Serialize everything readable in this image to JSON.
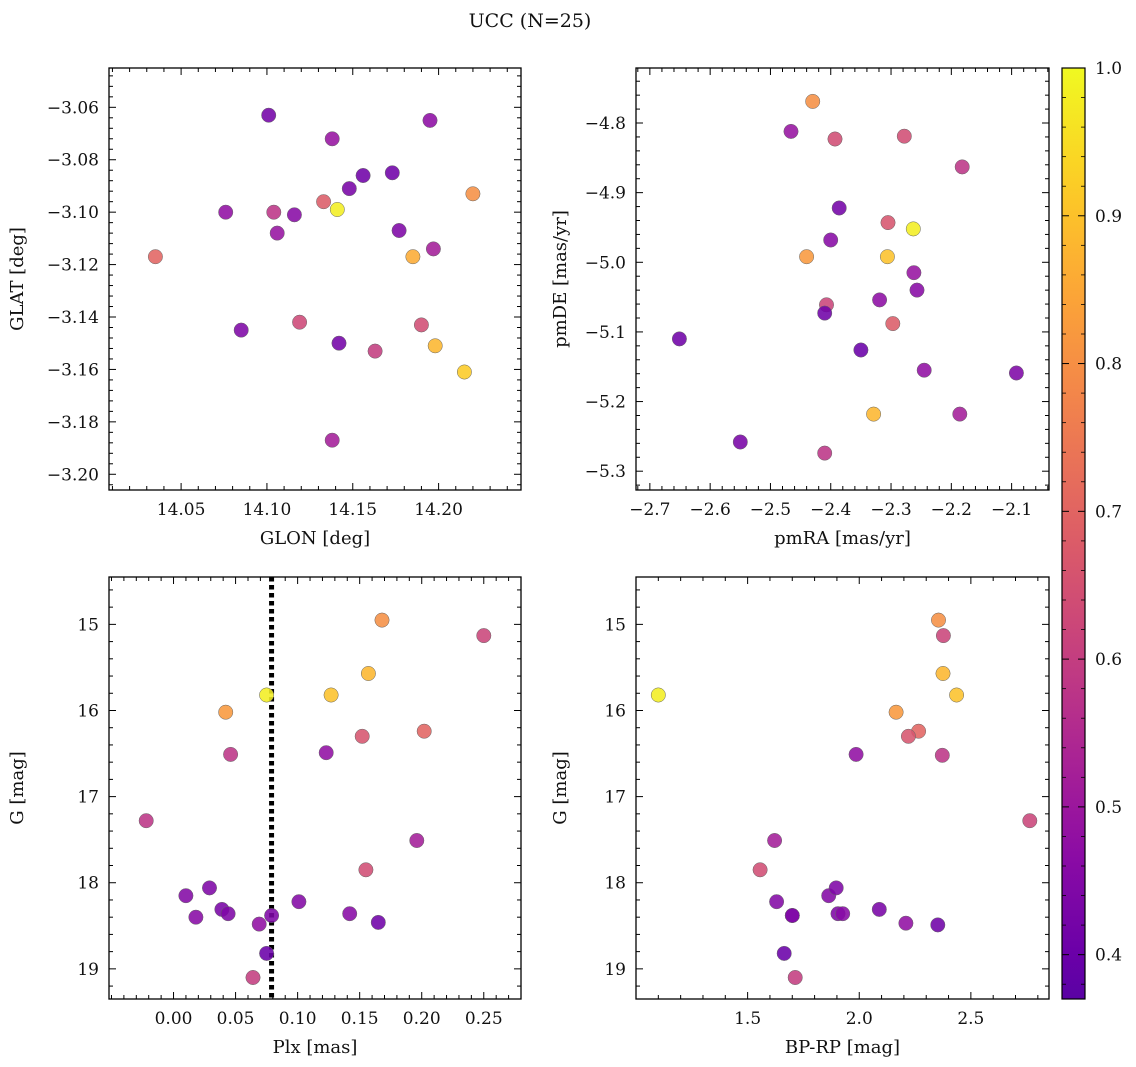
{
  "figure": {
    "title": "UCC (N=25)"
  },
  "colorbar": {
    "colormap": "plasma",
    "min": 0.37,
    "max": 1.0,
    "ticks": [
      "0.4",
      "0.5",
      "0.6",
      "0.7",
      "0.8",
      "0.9",
      "1.0"
    ],
    "tick_values": [
      0.4,
      0.5,
      0.6,
      0.7,
      0.8,
      0.9,
      1.0
    ]
  },
  "chart_data": [
    {
      "type": "scatter",
      "id": "glon-glat",
      "xlabel": "GLON [deg]",
      "ylabel": "GLAT [deg]",
      "xlim": [
        14.008,
        14.248
      ],
      "ylim": [
        -3.206,
        -3.045
      ],
      "y_inverted": false,
      "xticks": [
        14.05,
        14.1,
        14.15,
        14.2
      ],
      "xticklabels": [
        "14.05",
        "14.10",
        "14.15",
        "14.20"
      ],
      "yticks": [
        -3.06,
        -3.08,
        -3.1,
        -3.12,
        -3.14,
        -3.16,
        -3.18,
        -3.2
      ],
      "yticklabels": [
        "−3.06",
        "−3.08",
        "−3.10",
        "−3.12",
        "−3.14",
        "−3.16",
        "−3.18",
        "−3.20"
      ],
      "x": [
        14.101,
        14.195,
        14.138,
        14.173,
        14.156,
        14.148,
        14.22,
        14.076,
        14.104,
        14.116,
        14.133,
        14.141,
        14.106,
        14.035,
        14.177,
        14.197,
        14.185,
        14.119,
        14.19,
        14.085,
        14.142,
        14.163,
        14.198,
        14.215,
        14.138
      ],
      "y": [
        -3.063,
        -3.065,
        -3.072,
        -3.085,
        -3.086,
        -3.091,
        -3.093,
        -3.1,
        -3.1,
        -3.101,
        -3.096,
        -3.099,
        -3.108,
        -3.117,
        -3.107,
        -3.114,
        -3.117,
        -3.142,
        -3.143,
        -3.145,
        -3.15,
        -3.153,
        -3.151,
        -3.161,
        -3.187
      ],
      "c": [
        0.42,
        0.47,
        0.49,
        0.41,
        0.41,
        0.43,
        0.8,
        0.48,
        0.58,
        0.46,
        0.68,
        0.98,
        0.49,
        0.7,
        0.44,
        0.52,
        0.86,
        0.63,
        0.64,
        0.44,
        0.42,
        0.6,
        0.88,
        0.92,
        0.52
      ]
    },
    {
      "type": "scatter",
      "id": "pmra-pmde",
      "xlabel": "pmRA [mas/yr]",
      "ylabel": "pmDE [mas/yr]",
      "xlim": [
        -2.723,
        -2.038
      ],
      "ylim": [
        -5.327,
        -4.721
      ],
      "y_inverted": false,
      "xticks": [
        -2.7,
        -2.6,
        -2.5,
        -2.4,
        -2.3,
        -2.2,
        -2.1
      ],
      "xticklabels": [
        "−2.7",
        "−2.6",
        "−2.5",
        "−2.4",
        "−2.3",
        "−2.2",
        "−2.1"
      ],
      "yticks": [
        -4.8,
        -4.9,
        -5.0,
        -5.1,
        -5.2,
        -5.3
      ],
      "yticklabels": [
        "−4.8",
        "−4.9",
        "−5.0",
        "−5.1",
        "−5.2",
        "−5.3"
      ],
      "x": [
        -2.43,
        -2.466,
        -2.393,
        -2.278,
        -2.182,
        -2.386,
        -2.305,
        -2.263,
        -2.4,
        -2.44,
        -2.306,
        -2.262,
        -2.257,
        -2.407,
        -2.41,
        -2.319,
        -2.297,
        -2.651,
        -2.35,
        -2.245,
        -2.092,
        -2.329,
        -2.186,
        -2.55,
        -2.41
      ],
      "y": [
        -4.769,
        -4.812,
        -4.823,
        -4.819,
        -4.863,
        -4.922,
        -4.943,
        -4.952,
        -4.968,
        -4.992,
        -4.992,
        -5.015,
        -5.04,
        -5.061,
        -5.073,
        -5.054,
        -5.088,
        -5.11,
        -5.126,
        -5.155,
        -5.159,
        -5.218,
        -5.218,
        -5.258,
        -5.274
      ],
      "c": [
        0.8,
        0.49,
        0.64,
        0.64,
        0.58,
        0.42,
        0.66,
        0.98,
        0.46,
        0.82,
        0.9,
        0.49,
        0.46,
        0.62,
        0.41,
        0.47,
        0.68,
        0.41,
        0.4,
        0.48,
        0.44,
        0.88,
        0.52,
        0.43,
        0.58
      ]
    },
    {
      "type": "scatter",
      "id": "plx-g",
      "xlabel": "Plx [mas]",
      "ylabel": "G [mag]",
      "xlim": [
        -0.052,
        0.28
      ],
      "ylim": [
        19.35,
        14.45
      ],
      "y_inverted": true,
      "xticks": [
        0.0,
        0.05,
        0.1,
        0.15,
        0.2,
        0.25
      ],
      "xticklabels": [
        "0.00",
        "0.05",
        "0.10",
        "0.15",
        "0.20",
        "0.25"
      ],
      "yticks": [
        15,
        16,
        17,
        18,
        19
      ],
      "yticklabels": [
        "15",
        "16",
        "17",
        "18",
        "19"
      ],
      "vline": 0.079,
      "x": [
        0.168,
        0.25,
        0.157,
        0.075,
        0.127,
        0.042,
        0.202,
        0.152,
        0.046,
        0.123,
        -0.022,
        0.196,
        0.155,
        0.01,
        0.029,
        0.101,
        0.018,
        0.039,
        0.044,
        0.142,
        0.079,
        0.069,
        0.165,
        0.075,
        0.064
      ],
      "y": [
        14.95,
        15.13,
        15.57,
        15.82,
        15.82,
        16.02,
        16.24,
        16.3,
        16.51,
        16.49,
        17.28,
        17.51,
        17.85,
        18.15,
        18.06,
        18.22,
        18.4,
        18.31,
        18.36,
        18.36,
        18.38,
        18.48,
        18.46,
        18.82,
        19.1
      ],
      "c": [
        0.8,
        0.62,
        0.88,
        0.98,
        0.9,
        0.82,
        0.7,
        0.66,
        0.58,
        0.48,
        0.58,
        0.52,
        0.64,
        0.45,
        0.44,
        0.45,
        0.46,
        0.43,
        0.44,
        0.46,
        0.44,
        0.48,
        0.41,
        0.4,
        0.6
      ]
    },
    {
      "type": "scatter",
      "id": "bprp-g",
      "xlabel": "BP-RP [mag]",
      "ylabel": "G [mag]",
      "xlim": [
        1.0,
        2.85
      ],
      "ylim": [
        19.35,
        14.45
      ],
      "y_inverted": true,
      "xticks": [
        1.5,
        2.0,
        2.5
      ],
      "xticklabels": [
        "1.5",
        "2.0",
        "2.5"
      ],
      "yticks": [
        15,
        16,
        17,
        18,
        19
      ],
      "yticklabels": [
        "15",
        "16",
        "17",
        "18",
        "19"
      ],
      "x": [
        2.355,
        2.377,
        2.375,
        1.1,
        2.436,
        2.165,
        2.266,
        2.22,
        1.986,
        2.372,
        2.764,
        1.621,
        1.556,
        1.863,
        1.897,
        1.63,
        1.7,
        2.09,
        1.905,
        1.926,
        1.7,
        2.209,
        2.352,
        1.664,
        1.713
      ],
      "y": [
        14.95,
        15.13,
        15.57,
        15.82,
        15.82,
        16.02,
        16.24,
        16.3,
        16.51,
        16.52,
        17.28,
        17.51,
        17.85,
        18.15,
        18.06,
        18.22,
        18.38,
        18.31,
        18.36,
        18.36,
        18.38,
        18.47,
        18.49,
        18.82,
        19.1
      ],
      "c": [
        0.8,
        0.62,
        0.88,
        0.98,
        0.9,
        0.82,
        0.7,
        0.66,
        0.48,
        0.58,
        0.62,
        0.52,
        0.64,
        0.45,
        0.44,
        0.45,
        0.46,
        0.43,
        0.44,
        0.46,
        0.44,
        0.48,
        0.41,
        0.4,
        0.6
      ]
    }
  ]
}
